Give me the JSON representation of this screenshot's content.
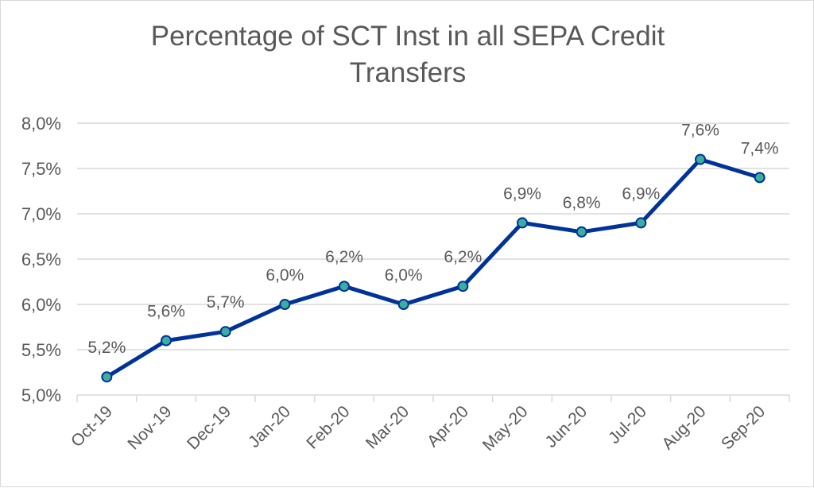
{
  "chart_data": {
    "type": "line",
    "title_line1": "Percentage of SCT Inst in all SEPA Credit",
    "title_line2": "Transfers",
    "categories": [
      "Oct-19",
      "Nov-19",
      "Dec-19",
      "Jan-20",
      "Feb-20",
      "Mar-20",
      "Apr-20",
      "May-20",
      "Jun-20",
      "Jul-20",
      "Aug-20",
      "Sep-20"
    ],
    "values": [
      5.2,
      5.6,
      5.7,
      6.0,
      6.2,
      6.0,
      6.2,
      6.9,
      6.8,
      6.9,
      7.6,
      7.4
    ],
    "data_labels": [
      "5,2%",
      "5,6%",
      "5,7%",
      "6,0%",
      "6,2%",
      "6,0%",
      "6,2%",
      "6,9%",
      "6,8%",
      "6,9%",
      "7,6%",
      "7,4%"
    ],
    "y_ticks": [
      5.0,
      5.5,
      6.0,
      6.5,
      7.0,
      7.5,
      8.0
    ],
    "y_tick_labels": [
      "5,0%",
      "5,5%",
      "6,0%",
      "6,5%",
      "7,0%",
      "7,5%",
      "8,0%"
    ],
    "ylim": [
      5.0,
      8.0
    ],
    "grid": true,
    "legend": "none",
    "xlabel": "",
    "ylabel": "",
    "colors": {
      "line": "#003399",
      "marker_fill": "#3aafa0",
      "grid": "#d9d9d9",
      "text": "#595959"
    }
  }
}
